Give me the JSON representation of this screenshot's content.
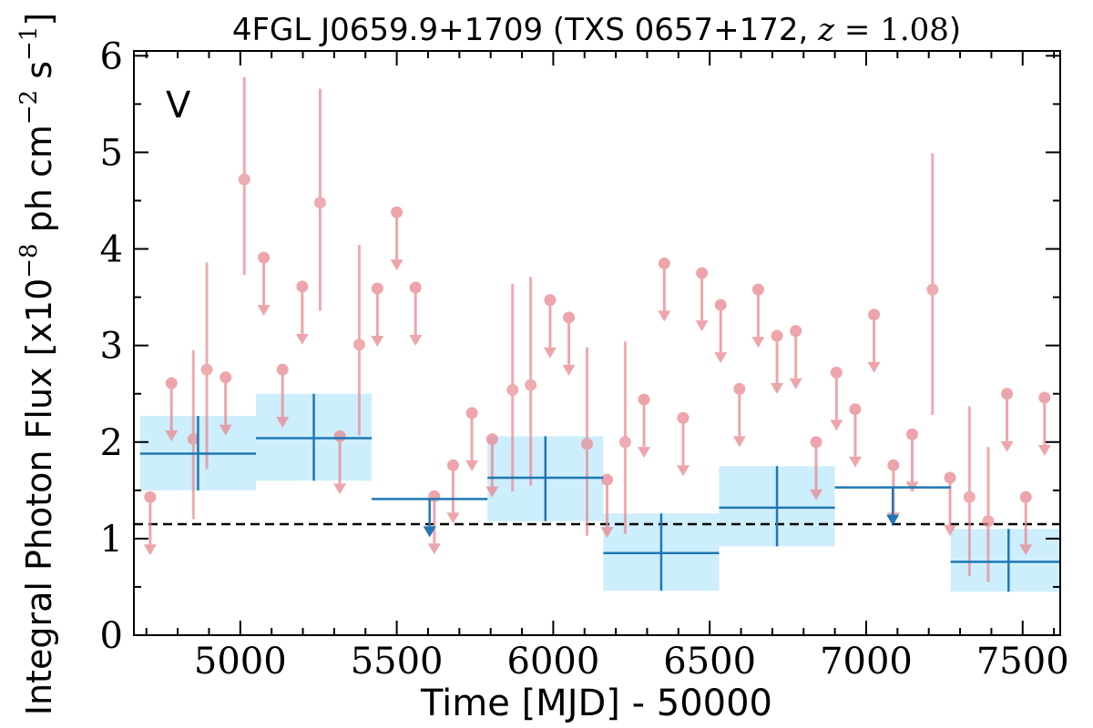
{
  "chart_data": {
    "type": "scatter",
    "title_main": "4FGL J0659.9+1709 (TXS 0657+172, ",
    "title_z_var": "z",
    "title_z_value": " = 1.08",
    "title_close": ")",
    "xlabel": "Time [MJD] - 50000",
    "ylabel": "Integral Photon Flux [x10",
    "ylabel_exp": "−8",
    "ylabel_units_1": " ph cm",
    "ylabel_units_exp_1": "−2",
    "ylabel_units_2": " s",
    "ylabel_units_exp_2": "−1",
    "ylabel_close": "]",
    "annotation": "V",
    "xlim": [
      4660,
      7620
    ],
    "ylim": [
      0,
      6.05
    ],
    "xticks": [
      5000,
      5500,
      6000,
      6500,
      7000,
      7500
    ],
    "xtick_labels": [
      "5000",
      "5500",
      "6000",
      "6500",
      "7000",
      "7500"
    ],
    "yticks": [
      0,
      1,
      2,
      3,
      4,
      5,
      6
    ],
    "ytick_labels": [
      "0",
      "1",
      "2",
      "3",
      "4",
      "5",
      "6"
    ],
    "reference_level": 1.15,
    "colors": {
      "short_bins": "#e8888f",
      "long_bins": "#1f77b4",
      "long_bins_band": "#cdeefc",
      "annotation": "#d62728",
      "reference": "#000000"
    },
    "short_bin_detections": [
      {
        "x": 4850,
        "y": 2.03,
        "ylo": 1.2,
        "yhi": 2.95
      },
      {
        "x": 4893,
        "y": 2.75,
        "ylo": 1.72,
        "yhi": 3.86
      },
      {
        "x": 5013,
        "y": 4.72,
        "ylo": 3.73,
        "yhi": 5.78
      },
      {
        "x": 5255,
        "y": 4.48,
        "ylo": 3.36,
        "yhi": 5.66
      },
      {
        "x": 5380,
        "y": 3.01,
        "ylo": 2.07,
        "yhi": 4.04
      },
      {
        "x": 5870,
        "y": 2.54,
        "ylo": 1.49,
        "yhi": 3.64
      },
      {
        "x": 5928,
        "y": 2.59,
        "ylo": 1.55,
        "yhi": 3.71
      },
      {
        "x": 6108,
        "y": 1.98,
        "ylo": 1.03,
        "yhi": 2.98
      },
      {
        "x": 6230,
        "y": 2.0,
        "ylo": 1.05,
        "yhi": 3.04
      },
      {
        "x": 7212,
        "y": 3.58,
        "ylo": 2.28,
        "yhi": 4.99
      },
      {
        "x": 7330,
        "y": 1.43,
        "ylo": 0.61,
        "yhi": 2.37
      },
      {
        "x": 7390,
        "y": 1.18,
        "ylo": 0.55,
        "yhi": 1.95
      }
    ],
    "short_bin_upper_limits": [
      {
        "x": 4712,
        "y": 1.43
      },
      {
        "x": 4780,
        "y": 2.61
      },
      {
        "x": 4953,
        "y": 2.67
      },
      {
        "x": 5075,
        "y": 3.91
      },
      {
        "x": 5135,
        "y": 2.75
      },
      {
        "x": 5198,
        "y": 3.61
      },
      {
        "x": 5318,
        "y": 2.06
      },
      {
        "x": 5438,
        "y": 3.59
      },
      {
        "x": 5500,
        "y": 4.38
      },
      {
        "x": 5560,
        "y": 3.6
      },
      {
        "x": 5620,
        "y": 1.44
      },
      {
        "x": 5680,
        "y": 1.76
      },
      {
        "x": 5740,
        "y": 2.3
      },
      {
        "x": 5805,
        "y": 2.03
      },
      {
        "x": 5990,
        "y": 3.47
      },
      {
        "x": 6050,
        "y": 3.29
      },
      {
        "x": 6172,
        "y": 1.61
      },
      {
        "x": 6290,
        "y": 2.44
      },
      {
        "x": 6355,
        "y": 3.85
      },
      {
        "x": 6415,
        "y": 2.25
      },
      {
        "x": 6475,
        "y": 3.75
      },
      {
        "x": 6535,
        "y": 3.42
      },
      {
        "x": 6595,
        "y": 2.55
      },
      {
        "x": 6655,
        "y": 3.58
      },
      {
        "x": 6715,
        "y": 3.1
      },
      {
        "x": 6775,
        "y": 3.15
      },
      {
        "x": 6840,
        "y": 2.0
      },
      {
        "x": 6905,
        "y": 2.72
      },
      {
        "x": 6965,
        "y": 2.34
      },
      {
        "x": 7025,
        "y": 3.32
      },
      {
        "x": 7087,
        "y": 1.76
      },
      {
        "x": 7147,
        "y": 2.08
      },
      {
        "x": 7268,
        "y": 1.63
      },
      {
        "x": 7450,
        "y": 2.5
      },
      {
        "x": 7510,
        "y": 1.43
      },
      {
        "x": 7570,
        "y": 2.46
      }
    ],
    "long_bin_detections": [
      {
        "x": 4865,
        "x0": 4680,
        "x1": 5050,
        "y": 1.88,
        "ylo": 1.5,
        "yhi": 2.27
      },
      {
        "x": 5235,
        "x0": 5050,
        "x1": 5420,
        "y": 2.04,
        "ylo": 1.6,
        "yhi": 2.5
      },
      {
        "x": 5975,
        "x0": 5790,
        "x1": 6160,
        "y": 1.63,
        "ylo": 1.18,
        "yhi": 2.06
      },
      {
        "x": 6345,
        "x0": 6160,
        "x1": 6530,
        "y": 0.85,
        "ylo": 0.46,
        "yhi": 1.26
      },
      {
        "x": 6715,
        "x0": 6530,
        "x1": 6900,
        "y": 1.32,
        "ylo": 0.92,
        "yhi": 1.75
      },
      {
        "x": 7455,
        "x0": 7270,
        "x1": 7640,
        "y": 0.76,
        "ylo": 0.45,
        "yhi": 1.1
      }
    ],
    "long_bin_upper_limits": [
      {
        "x": 5605,
        "x0": 5420,
        "x1": 5790,
        "y": 1.41
      },
      {
        "x": 7085,
        "x0": 6900,
        "x1": 7270,
        "y": 1.53
      }
    ]
  }
}
